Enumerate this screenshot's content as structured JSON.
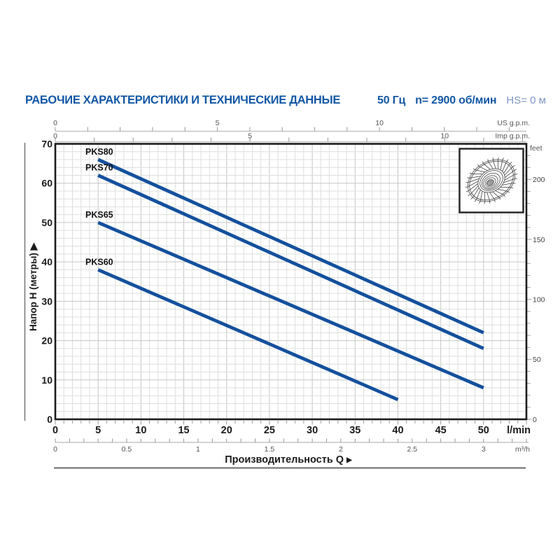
{
  "header": {
    "title": "РАБОЧИЕ ХАРАКТЕРИСТИКИ И ТЕХНИЧЕСКИЕ ДАННЫЕ",
    "frequency": "50 Гц",
    "speed": "n= 2900 об/мин",
    "suction_head": "HS= 0 м",
    "title_color": "#1257a5",
    "muted_color": "#7e96c2"
  },
  "icons": {
    "axis_arrow": "▶",
    "impeller": "impeller-technical-drawing"
  },
  "chart_data": {
    "type": "line",
    "title": "",
    "xlabel": "Производительность Q",
    "ylabel": "Напор H (метры)",
    "xlim_lmin": [
      0,
      55
    ],
    "ylim_m": [
      0,
      70
    ],
    "grid": {
      "minor_x_lmin": 1,
      "major_x_lmin": 5,
      "minor_y_m": 2,
      "major_y_m": 10
    },
    "x_axis": {
      "unit": "l/min",
      "ticks": [
        0,
        5,
        10,
        15,
        20,
        25,
        30,
        35,
        40,
        45,
        50
      ]
    },
    "y_axis": {
      "ticks": [
        0,
        10,
        20,
        30,
        40,
        50,
        60,
        70
      ]
    },
    "secondary_axes": {
      "us_gpm": {
        "label": "US g.p.m.",
        "ticks": [
          0,
          5,
          10
        ],
        "lmin_per_unit": 3.785,
        "minor_step": 1
      },
      "imp_gpm": {
        "label": "Imp g.p.m.",
        "ticks": [
          0,
          5,
          10
        ],
        "lmin_per_unit": 4.546,
        "minor_step": 1
      },
      "m3_h": {
        "label": "m³/h",
        "ticks": [
          0,
          0.5,
          1,
          1.5,
          2,
          2.5,
          3
        ],
        "lmin_per_unit": 16.667,
        "minor_step": 0.1
      },
      "feet": {
        "label": "feet",
        "ticks": [
          0,
          50,
          100,
          150,
          200
        ],
        "m_per_unit": 0.3048,
        "minor_step": 10,
        "minor_max": 220
      }
    },
    "series": [
      {
        "name": "PKS80",
        "points": [
          [
            5,
            66
          ],
          [
            50,
            22
          ]
        ]
      },
      {
        "name": "PKS70",
        "points": [
          [
            5,
            62
          ],
          [
            50,
            18
          ]
        ]
      },
      {
        "name": "PKS65",
        "points": [
          [
            5,
            50
          ],
          [
            50,
            8
          ]
        ]
      },
      {
        "name": "PKS60",
        "points": [
          [
            5,
            38
          ],
          [
            40,
            5
          ]
        ]
      }
    ],
    "line_color": "#14509d",
    "grid_minor_color": "#dde0dc",
    "grid_major_color": "#c4c8c4",
    "axis_line_color": "#b9bcb9",
    "tick_color": "#999999",
    "border_color": "#1b1b1b",
    "label_color": "#1a1a1a",
    "secondary_label_color": "#555555"
  }
}
